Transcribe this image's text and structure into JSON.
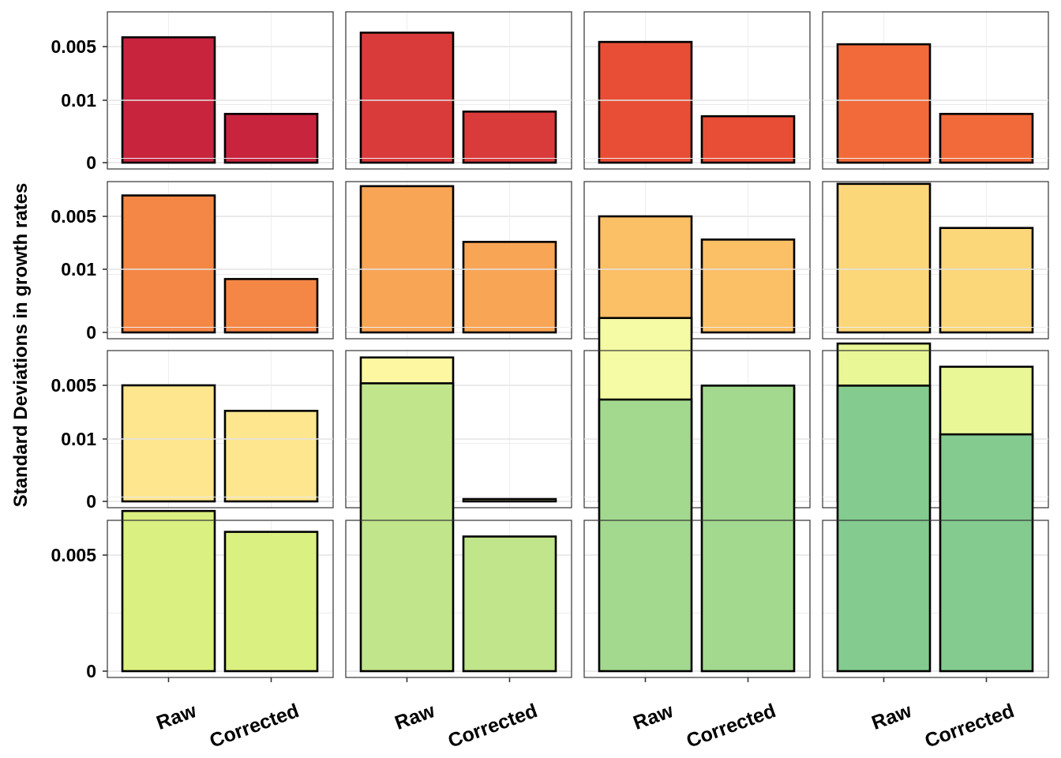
{
  "chart_data": {
    "type": "bar",
    "facet_layout": "4x4 grid, shared axes",
    "ylabel": "Standard Deviations in growth rates",
    "categories": [
      "Raw",
      "Corrected"
    ],
    "y_ticks": [
      "0",
      "0.005",
      "0.01"
    ],
    "y_tick_values": [
      0,
      0.005,
      0.01
    ],
    "ylim": [
      0,
      0.0126
    ],
    "grid": true,
    "bar_outline_color": "#000000",
    "panels": [
      {
        "fill": "#C8243E",
        "values": [
          0.0054,
          0.0021
        ]
      },
      {
        "fill": "#D93B3B",
        "values": [
          0.0056,
          0.0022
        ]
      },
      {
        "fill": "#E84E36",
        "values": [
          0.0052,
          0.002
        ]
      },
      {
        "fill": "#F26A3A",
        "values": [
          0.0051,
          0.0021
        ]
      },
      {
        "fill": "#F48746",
        "values": [
          0.0059,
          0.0023
        ]
      },
      {
        "fill": "#F9A556",
        "values": [
          0.0063,
          0.0039
        ]
      },
      {
        "fill": "#FBBF66",
        "values": [
          0.005,
          0.004
        ]
      },
      {
        "fill": "#FCD77A",
        "values": [
          0.0064,
          0.0045
        ]
      },
      {
        "fill": "#FDE68E",
        "values": [
          0.005,
          0.0039
        ]
      },
      {
        "fill": "#FDF7A2",
        "values": [
          0.0062,
          0.0001
        ]
      },
      {
        "fill": "#F5FBA4",
        "values": [
          0.0079,
          0.0049
        ]
      },
      {
        "fill": "#E9F796",
        "values": [
          0.0068,
          0.0058
        ]
      },
      {
        "fill": "#DAF080",
        "values": [
          0.0069,
          0.006
        ]
      },
      {
        "fill": "#C1E58A",
        "values": [
          0.0124,
          0.0058
        ]
      },
      {
        "fill": "#A3D98F",
        "values": [
          0.0117,
          0.0123
        ]
      },
      {
        "fill": "#84CB90",
        "values": [
          0.0123,
          0.0102
        ]
      }
    ]
  }
}
